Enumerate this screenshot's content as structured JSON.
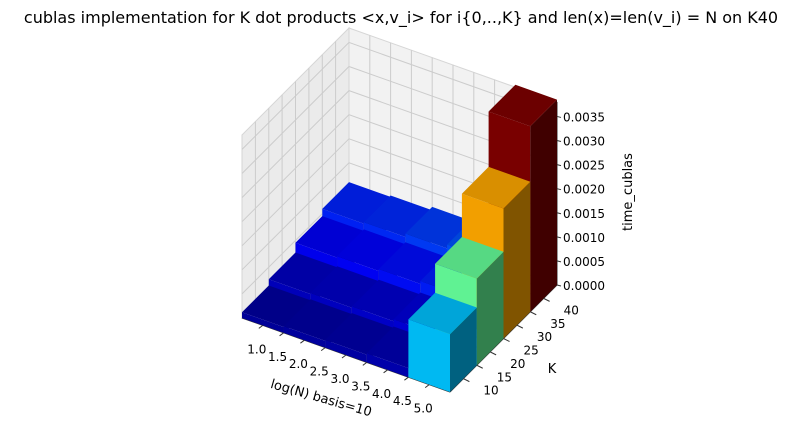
{
  "chart_data": {
    "type": "bar3d",
    "title": "cublas implementation for K dot products <x,v_i> for i{0,..,K} and len(x)=len(v_i) = N on K40",
    "xlabel": "log(N) basis=10",
    "ylabel": "K",
    "zlabel": "time_cublas",
    "x_ticks": [
      "1.0",
      "1.5",
      "2.0",
      "2.5",
      "3.0",
      "3.5",
      "4.0",
      "4.5",
      "5.0"
    ],
    "y_ticks": [
      "10",
      "15",
      "20",
      "25",
      "30",
      "35",
      "40"
    ],
    "z_ticks": [
      "0.0000",
      "0.0005",
      "0.0010",
      "0.0015",
      "0.0020",
      "0.0025",
      "0.0030",
      "0.0035"
    ],
    "x_values": [
      1,
      2,
      3,
      4,
      5
    ],
    "k_values": [
      10,
      20,
      30,
      40
    ],
    "zlim": [
      0,
      0.0038
    ],
    "values": [
      [
        0.00012,
        0.00014,
        0.00016,
        0.00019,
        0.0012
      ],
      [
        0.00025,
        0.00027,
        0.0003,
        0.00034,
        0.0018
      ],
      [
        0.00045,
        0.00048,
        0.00052,
        0.00058,
        0.0027
      ],
      [
        0.0006,
        0.00063,
        0.0007,
        0.00078,
        0.00385
      ]
    ],
    "colormap": "jet",
    "grid": true
  }
}
